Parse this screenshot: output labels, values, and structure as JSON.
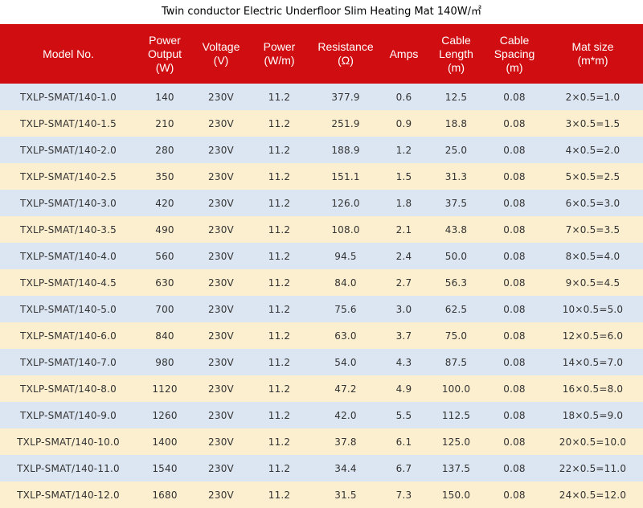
{
  "title": "Twin conductor Electric Underfloor Slim Heating Mat 140W/㎡",
  "headers": [
    [
      "Model No."
    ],
    [
      "Power",
      "Output",
      "(W)"
    ],
    [
      "Voltage",
      "(V)"
    ],
    [
      "Power",
      "(W/m)"
    ],
    [
      "Resistance",
      "(Ω)"
    ],
    [
      "Amps"
    ],
    [
      "Cable",
      "Length",
      "(m)"
    ],
    [
      "Cable",
      "Spacing",
      "(m)"
    ],
    [
      "Mat size",
      "(m*m)"
    ]
  ],
  "rows": [
    [
      "TXLP-SMAT/140-1.0",
      "140",
      "230V",
      "11.2",
      "377.9",
      "0.6",
      "12.5",
      "0.08",
      "2×0.5=1.0"
    ],
    [
      "TXLP-SMAT/140-1.5",
      "210",
      "230V",
      "11.2",
      "251.9",
      "0.9",
      "18.8",
      "0.08",
      "3×0.5=1.5"
    ],
    [
      "TXLP-SMAT/140-2.0",
      "280",
      "230V",
      "11.2",
      "188.9",
      "1.2",
      "25.0",
      "0.08",
      "4×0.5=2.0"
    ],
    [
      "TXLP-SMAT/140-2.5",
      "350",
      "230V",
      "11.2",
      "151.1",
      "1.5",
      "31.3",
      "0.08",
      "5×0.5=2.5"
    ],
    [
      "TXLP-SMAT/140-3.0",
      "420",
      "230V",
      "11.2",
      "126.0",
      "1.8",
      "37.5",
      "0.08",
      "6×0.5=3.0"
    ],
    [
      "TXLP-SMAT/140-3.5",
      "490",
      "230V",
      "11.2",
      "108.0",
      "2.1",
      "43.8",
      "0.08",
      "7×0.5=3.5"
    ],
    [
      "TXLP-SMAT/140-4.0",
      "560",
      "230V",
      "11.2",
      "94.5",
      "2.4",
      "50.0",
      "0.08",
      "8×0.5=4.0"
    ],
    [
      "TXLP-SMAT/140-4.5",
      "630",
      "230V",
      "11.2",
      "84.0",
      "2.7",
      "56.3",
      "0.08",
      "9×0.5=4.5"
    ],
    [
      "TXLP-SMAT/140-5.0",
      "700",
      "230V",
      "11.2",
      "75.6",
      "3.0",
      "62.5",
      "0.08",
      "10×0.5=5.0"
    ],
    [
      "TXLP-SMAT/140-6.0",
      "840",
      "230V",
      "11.2",
      "63.0",
      "3.7",
      "75.0",
      "0.08",
      "12×0.5=6.0"
    ],
    [
      "TXLP-SMAT/140-7.0",
      "980",
      "230V",
      "11.2",
      "54.0",
      "4.3",
      "87.5",
      "0.08",
      "14×0.5=7.0"
    ],
    [
      "TXLP-SMAT/140-8.0",
      "1120",
      "230V",
      "11.2",
      "47.2",
      "4.9",
      "100.0",
      "0.08",
      "16×0.5=8.0"
    ],
    [
      "TXLP-SMAT/140-9.0",
      "1260",
      "230V",
      "11.2",
      "42.0",
      "5.5",
      "112.5",
      "0.08",
      "18×0.5=9.0"
    ],
    [
      "TXLP-SMAT/140-10.0",
      "1400",
      "230V",
      "11.2",
      "37.8",
      "6.1",
      "125.0",
      "0.08",
      "20×0.5=10.0"
    ],
    [
      "TXLP-SMAT/140-11.0",
      "1540",
      "230V",
      "11.2",
      "34.4",
      "6.7",
      "137.5",
      "0.08",
      "22×0.5=11.0"
    ],
    [
      "TXLP-SMAT/140-12.0",
      "1680",
      "230V",
      "11.2",
      "31.5",
      "7.3",
      "150.0",
      "0.08",
      "24×0.5=12.0"
    ]
  ],
  "colors": {
    "header_bg": "#d00d10",
    "header_text": "#ffffff",
    "row_odd_bg": "#dce6f2",
    "row_even_bg": "#fcefcf",
    "cell_text": "#333333"
  }
}
